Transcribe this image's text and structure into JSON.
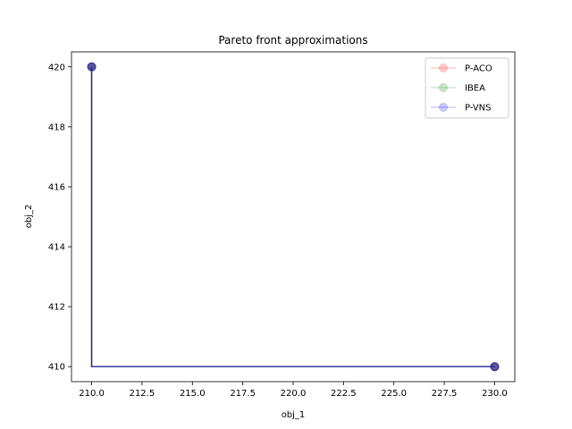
{
  "chart_data": {
    "type": "line",
    "title": "Pareto front approximations",
    "xlabel": "obj_1",
    "ylabel": "obj_2",
    "xlim": [
      209.0,
      231.0
    ],
    "ylim": [
      409.5,
      420.5
    ],
    "xticks": [
      210.0,
      212.5,
      215.0,
      217.5,
      220.0,
      222.5,
      225.0,
      227.5,
      230.0
    ],
    "xtick_labels": [
      "210.0",
      "212.5",
      "215.0",
      "217.5",
      "220.0",
      "222.5",
      "225.0",
      "227.5",
      "230.0"
    ],
    "yticks": [
      410,
      412,
      414,
      416,
      418,
      420
    ],
    "ytick_labels": [
      "410",
      "412",
      "414",
      "416",
      "418",
      "420"
    ],
    "grid": false,
    "legend_position": "top-right",
    "step_path": true,
    "series": [
      {
        "name": "P-ACO",
        "color": "#ff0000",
        "alpha": 0.2,
        "points": [
          [
            210,
            420
          ],
          [
            230,
            410
          ]
        ]
      },
      {
        "name": "IBEA",
        "color": "#008000",
        "alpha": 0.2,
        "points": [
          [
            210,
            420
          ],
          [
            230,
            410
          ]
        ]
      },
      {
        "name": "P-VNS",
        "color": "#0000ff",
        "alpha": 0.2,
        "points": [
          [
            210,
            420
          ],
          [
            230,
            410
          ]
        ]
      }
    ]
  }
}
